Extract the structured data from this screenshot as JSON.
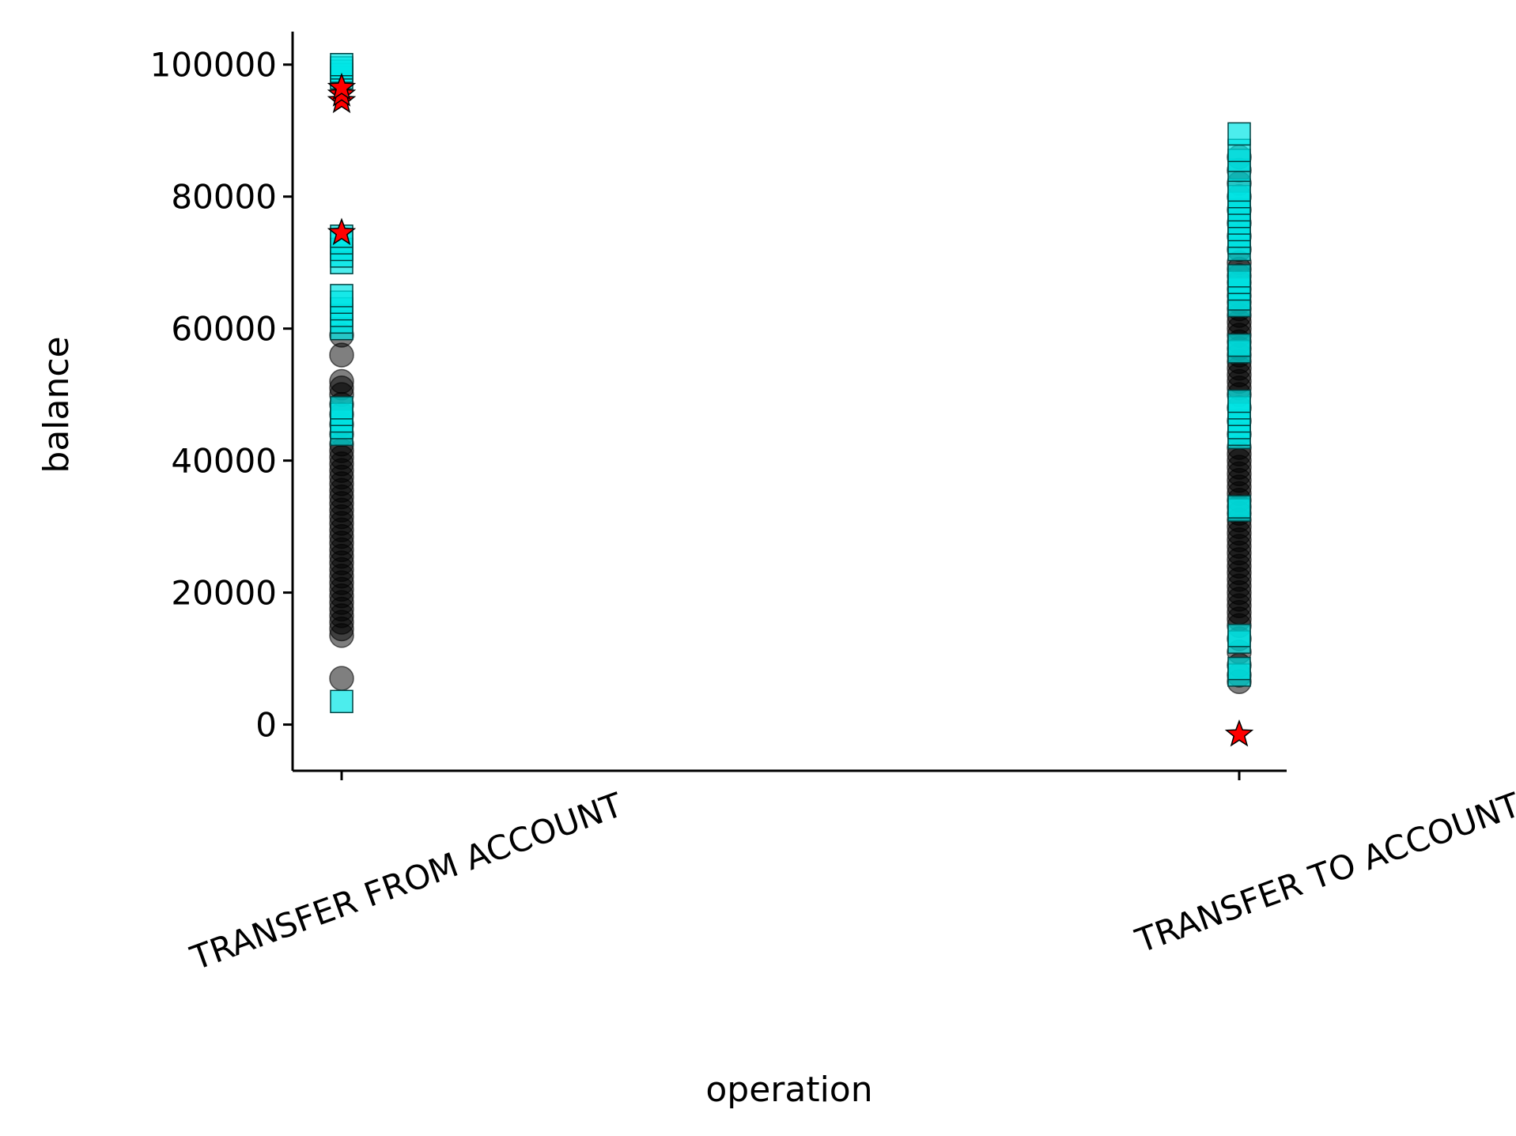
{
  "chart_data": {
    "type": "scatter",
    "title": "",
    "xlabel": "operation",
    "ylabel": "balance",
    "categories": [
      "TRANSFER FROM ACCOUNT",
      "TRANSFER TO ACCOUNT"
    ],
    "ylim": [
      -7000,
      105000
    ],
    "yticks": [
      0,
      20000,
      40000,
      60000,
      80000,
      100000
    ],
    "ytick_labels": [
      "0",
      "20000",
      "40000",
      "60000",
      "80000",
      "100000"
    ],
    "xtick_rotation_deg": -20,
    "grid": false,
    "legend": "none",
    "series": [
      {
        "marker": "circle",
        "color": "#000000",
        "opacity": 0.5,
        "points": [
          {
            "category": "TRANSFER FROM ACCOUNT",
            "values": [
              7000,
              13500,
              14500,
              15500,
              16500,
              17500,
              18500,
              19500,
              20500,
              21500,
              22500,
              23500,
              24500,
              25500,
              26500,
              27500,
              28500,
              29500,
              30500,
              31500,
              32500,
              33500,
              34500,
              35500,
              36500,
              37500,
              38500,
              39500,
              40500,
              41500,
              42500,
              44000,
              45500,
              47000,
              48500,
              50000,
              51000,
              52000,
              56000,
              59000
            ]
          },
          {
            "category": "TRANSFER TO ACCOUNT",
            "values": [
              6500,
              7500,
              9000,
              11000,
              13000,
              15000,
              16000,
              17000,
              18000,
              19000,
              20000,
              21000,
              22000,
              23000,
              24000,
              25000,
              26000,
              27000,
              28000,
              29000,
              30000,
              31000,
              32000,
              33000,
              34000,
              35000,
              36000,
              37000,
              38000,
              39000,
              40000,
              41000,
              42000,
              44000,
              46000,
              48000,
              50000,
              51000,
              52000,
              53000,
              54000,
              55000,
              56000,
              57000,
              58000,
              59000,
              60000,
              61000,
              62000,
              63000,
              64000,
              65000,
              66000,
              67000,
              68000,
              69000,
              70000,
              72000,
              74000,
              76000,
              78000,
              80000,
              82000,
              84000,
              86000
            ]
          }
        ]
      },
      {
        "marker": "square",
        "color": "#00e5e5",
        "opacity": 0.7,
        "points": [
          {
            "category": "TRANSFER FROM ACCOUNT",
            "values": [
              3500,
              44000,
              45000,
              46000,
              47000,
              48000,
              60000,
              61000,
              62000,
              63000,
              64000,
              65000,
              70000,
              71000,
              72000,
              73000,
              74000,
              98000,
              98500,
              99000,
              99500,
              100000
            ]
          },
          {
            "category": "TRANSFER TO ACCOUNT",
            "values": [
              7500,
              8500,
              12500,
              13500,
              32500,
              33000,
              43500,
              44000,
              45000,
              46000,
              47000,
              48000,
              49000,
              56500,
              57500,
              63500,
              64500,
              66000,
              67000,
              68000,
              72000,
              73000,
              74000,
              75000,
              76000,
              77000,
              78000,
              79000,
              80000,
              81000,
              84000,
              85500,
              87000,
              89500
            ]
          }
        ]
      },
      {
        "marker": "star",
        "color": "#ff0000",
        "opacity": 1,
        "points": [
          {
            "category": "TRANSFER FROM ACCOUNT",
            "values": [
              94500,
              95500,
              96500,
              74500
            ]
          },
          {
            "category": "TRANSFER TO ACCOUNT",
            "values": [
              -1500
            ]
          }
        ]
      }
    ]
  }
}
